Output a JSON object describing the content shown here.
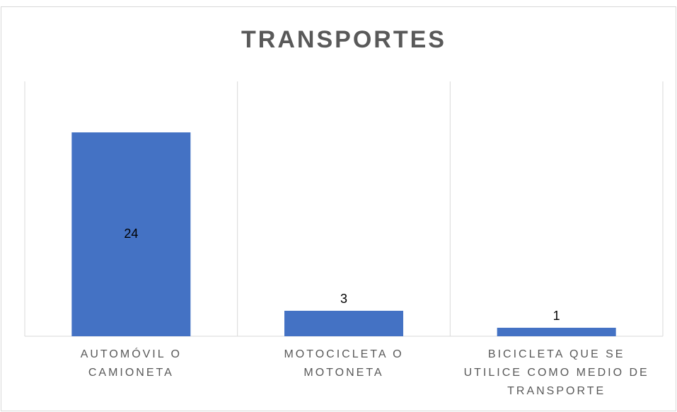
{
  "chart_data": {
    "type": "bar",
    "title": "TRANSPORTES",
    "categories": [
      "AUTOMÓVIL O CAMIONETA",
      "MOTOCICLETA O MOTONETA",
      "BICICLETA QUE SE UTILICE COMO MEDIO DE TRANSPORTE"
    ],
    "values": [
      24,
      3,
      1
    ],
    "color": "#4472c4",
    "ylim": [
      0,
      30
    ]
  }
}
